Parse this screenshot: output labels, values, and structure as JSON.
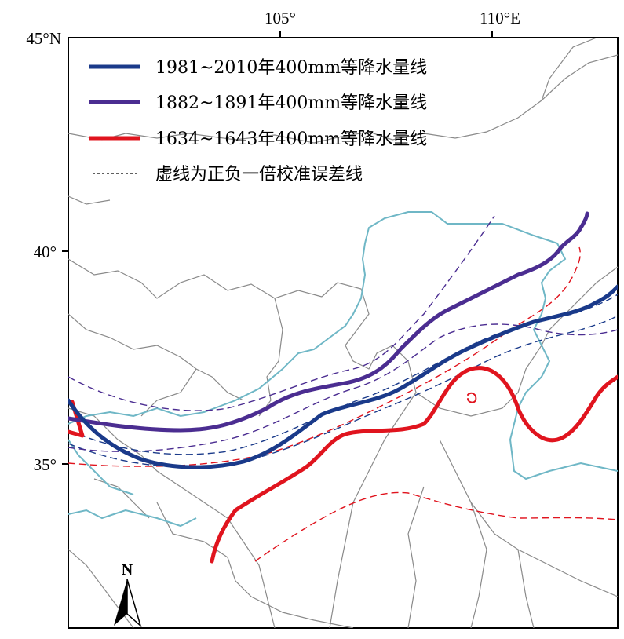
{
  "axes": {
    "x_ticks": [
      {
        "value": 105,
        "label": "105°"
      },
      {
        "value": 110,
        "label": "110°E"
      }
    ],
    "y_ticks": [
      {
        "value": 45,
        "label": "45°N"
      },
      {
        "value": 40,
        "label": "40°"
      },
      {
        "value": 35,
        "label": "35°"
      }
    ]
  },
  "legend": {
    "position": "top-left",
    "items": [
      {
        "label": "1981~2010年400mm等降水量线",
        "color": "#1a3a8a",
        "style": "solid-thick"
      },
      {
        "label": "1882~1891年400mm等降水量线",
        "color": "#4b2d91",
        "style": "solid-thick"
      },
      {
        "label": "1634~1643年400mm等降水量线",
        "color": "#e0141e",
        "style": "solid-thick"
      },
      {
        "label": "虚线为正负一倍校准误差线",
        "color": "#000000",
        "style": "dashed"
      }
    ]
  },
  "north_arrow": {
    "label": "N",
    "icon": "north-arrow-icon"
  },
  "colors": {
    "province_border": "#8a8a8a",
    "river": "#6fb7c6",
    "line_1981_2010": "#1a3a8a",
    "line_1882_1891": "#4b2d91",
    "line_1634_1643": "#e0141e"
  }
}
